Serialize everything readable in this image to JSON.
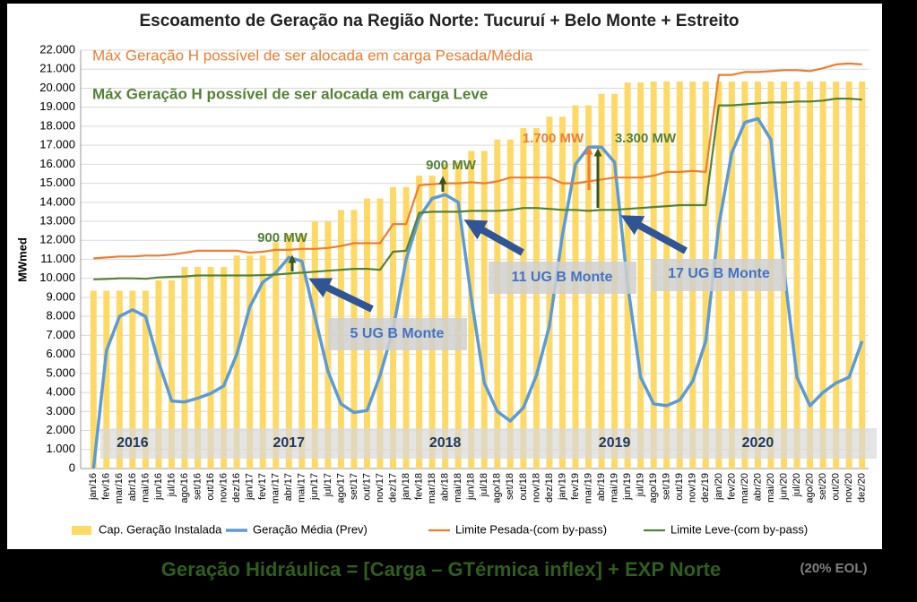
{
  "chart_data": {
    "type": "bar_line",
    "title": "Escoamento de Geração na Região Norte: Tucuruí + Belo Monte + Estreito",
    "y_label": "MWmed",
    "categories": [
      "jan/16",
      "fev/16",
      "mar/16",
      "abr/16",
      "mai/16",
      "jun/16",
      "jul/16",
      "ago/16",
      "set/16",
      "out/16",
      "nov/16",
      "dez/16",
      "jan/17",
      "fev/17",
      "mar/17",
      "abr/17",
      "mai/17",
      "jun/17",
      "jul/17",
      "ago/17",
      "set/17",
      "out/17",
      "nov/17",
      "dez/17",
      "jan/18",
      "fev/18",
      "mar/18",
      "abr/18",
      "mai/18",
      "jun/18",
      "jul/18",
      "ago/18",
      "set/18",
      "out/18",
      "nov/18",
      "dez/18",
      "jan/19",
      "fev/19",
      "mar/19",
      "abr/19",
      "mai/19",
      "jun/19",
      "jul/19",
      "ago/19",
      "set/19",
      "out/19",
      "nov/19",
      "dez/19",
      "jan/20",
      "fev/20",
      "mar/20",
      "abr/20",
      "mai/20",
      "jun/20",
      "jul/20",
      "ago/20",
      "set/20",
      "out/20",
      "nov/20",
      "dez/20"
    ],
    "series": [
      {
        "name": "Cap. Geração Instalada",
        "type": "bar",
        "color": "#ffd966",
        "values": [
          9350,
          9350,
          9350,
          9350,
          9350,
          9900,
          9900,
          10600,
          10600,
          10600,
          10600,
          11200,
          11200,
          11200,
          11900,
          12300,
          12300,
          13000,
          13000,
          13600,
          13600,
          14200,
          14200,
          14800,
          14800,
          15400,
          15400,
          16000,
          16100,
          16700,
          16700,
          17300,
          17300,
          17900,
          17900,
          18500,
          18500,
          19100,
          19100,
          19700,
          19700,
          20300,
          20300,
          20350,
          20350,
          20350,
          20350,
          20350,
          20350,
          20350,
          20350,
          20350,
          20350,
          20350,
          20350,
          20350,
          20350,
          20350,
          20350,
          20350
        ]
      },
      {
        "name": "Geração Média (Prev)",
        "type": "line",
        "color": "#5b9bd5",
        "width": 3.5,
        "values": [
          0,
          6200,
          8000,
          8350,
          8000,
          5600,
          3550,
          3500,
          3700,
          3950,
          4350,
          6000,
          8500,
          9800,
          10300,
          11100,
          10900,
          8000,
          5100,
          3400,
          2950,
          3050,
          4900,
          7300,
          11000,
          13200,
          14200,
          14400,
          14000,
          9000,
          4500,
          3000,
          2500,
          3200,
          4900,
          7500,
          12300,
          16000,
          16900,
          16900,
          16100,
          9700,
          4800,
          3400,
          3300,
          3600,
          4600,
          6700,
          12800,
          16600,
          18200,
          18400,
          17300,
          10500,
          4800,
          3300,
          4000,
          4500,
          4800,
          6700
        ]
      },
      {
        "name": "Limite Pesada-(com by-pass)",
        "type": "line",
        "color": "#ed7d31",
        "width": 2.2,
        "values": [
          11050,
          11100,
          11150,
          11150,
          11200,
          11200,
          11250,
          11350,
          11450,
          11450,
          11450,
          11450,
          11350,
          11400,
          11500,
          11500,
          11550,
          11550,
          11600,
          11700,
          11850,
          11850,
          11850,
          12850,
          12850,
          14900,
          14950,
          15000,
          15000,
          15050,
          15000,
          15100,
          15300,
          15300,
          15300,
          15300,
          15000,
          15000,
          15100,
          15200,
          15300,
          15300,
          15300,
          15400,
          15600,
          15600,
          15650,
          15600,
          20700,
          20700,
          20850,
          20850,
          20900,
          20950,
          20950,
          20900,
          21050,
          21250,
          21300,
          21250
        ]
      },
      {
        "name": "Limite Leve-(com by-pass)",
        "type": "line",
        "color": "#548235",
        "width": 2.2,
        "values": [
          9950,
          9970,
          10000,
          10000,
          9980,
          10050,
          10080,
          10100,
          10150,
          10150,
          10150,
          10150,
          10150,
          10170,
          10200,
          10250,
          10300,
          10350,
          10400,
          10450,
          10500,
          10500,
          10450,
          11400,
          11450,
          13450,
          13500,
          13500,
          13500,
          13550,
          13550,
          13550,
          13600,
          13700,
          13700,
          13650,
          13600,
          13600,
          13550,
          13600,
          13600,
          13650,
          13700,
          13750,
          13800,
          13850,
          13850,
          13850,
          19100,
          19100,
          19150,
          19200,
          19250,
          19250,
          19300,
          19300,
          19350,
          19450,
          19450,
          19400
        ]
      }
    ],
    "ylim": [
      0,
      22000
    ],
    "yticks": [
      0,
      {
        "value": 1000,
        "label": "1.000"
      },
      {
        "value": 2000,
        "label": "2.000"
      },
      {
        "value": 3000,
        "label": "3.000"
      },
      {
        "value": 4000,
        "label": "4.000"
      },
      {
        "value": 5000,
        "label": "5.000"
      },
      {
        "value": 6000,
        "label": "6.000"
      },
      {
        "value": 7000,
        "label": "7.000"
      },
      {
        "value": 8000,
        "label": "8.000"
      },
      {
        "value": 9000,
        "label": "9.000"
      },
      {
        "value": 10000,
        "label": "10.000"
      },
      {
        "value": 11000,
        "label": "11.000"
      },
      {
        "value": 12000,
        "label": "12.000"
      },
      {
        "value": 13000,
        "label": "13.000"
      },
      {
        "value": 14000,
        "label": "14.000"
      },
      {
        "value": 15000,
        "label": "15.000"
      },
      {
        "value": 16000,
        "label": "16.000"
      },
      {
        "value": 17000,
        "label": "17.000"
      },
      {
        "value": 18000,
        "label": "18.000"
      },
      {
        "value": 19000,
        "label": "19.000"
      },
      {
        "value": 20000,
        "label": "20.000"
      },
      {
        "value": 21000,
        "label": "21.000"
      },
      {
        "value": 22000,
        "label": "22.000"
      }
    ],
    "grid": true,
    "legend": "bottom",
    "years": [
      "2016",
      "2017",
      "2018",
      "2019",
      "2020"
    ],
    "annotations": [
      {
        "text": "Máx Geração H possível de ser alocada em carga Pesada/Média",
        "color": "#ed7d31"
      },
      {
        "text": "Máx Geração H possível de ser alocada em carga Leve",
        "color": "#548235"
      },
      {
        "text": "900 MW",
        "color": "#548235"
      },
      {
        "text": "900 MW",
        "color": "#548235"
      },
      {
        "text": "1.700 MW",
        "color": "#ed7d31"
      },
      {
        "text": "3.300 MW",
        "color": "#548235"
      },
      {
        "text": "5 UG B Monte",
        "color": "#4472c4"
      },
      {
        "text": "11 UG B Monte",
        "color": "#4472c4"
      },
      {
        "text": "17 UG B Monte",
        "color": "#4472c4"
      }
    ]
  },
  "footer": {
    "formula": "Geração Hidráulica = [Carga – GTérmica inflex] + EXP Norte",
    "note": "(20% EOL)"
  }
}
